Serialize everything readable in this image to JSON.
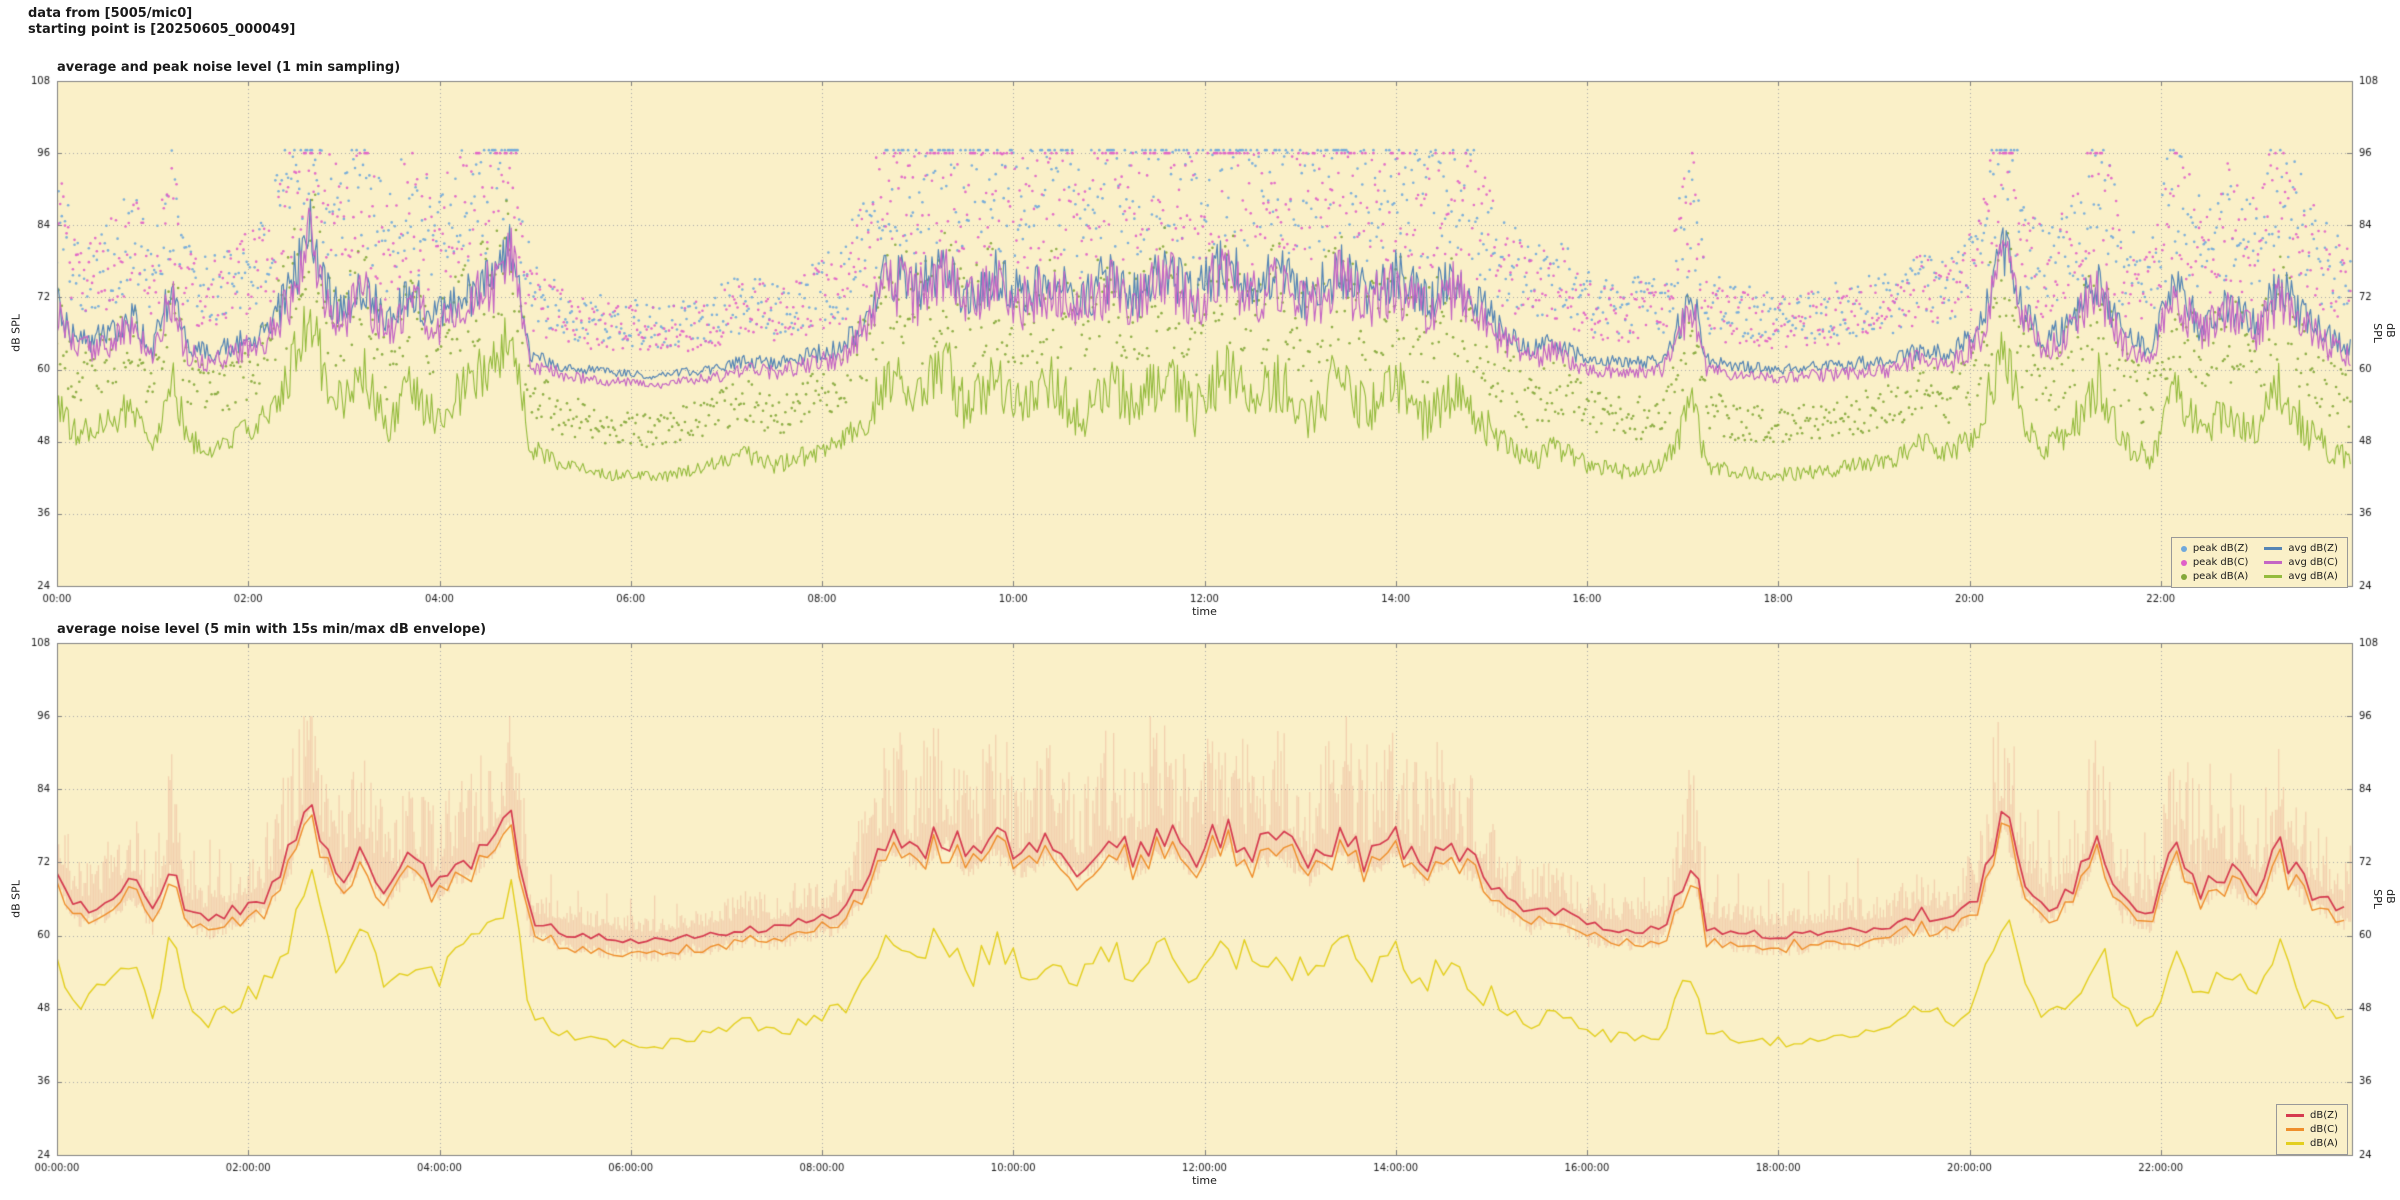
{
  "header": {
    "line1": "data from [5005/mic0]",
    "line2": "starting point is [20250605_000049]"
  },
  "colors": {
    "page_bg": "#ffffff",
    "plot_bg": "#faf0c8",
    "grid": "#a8a8a8",
    "axis": "#808080",
    "text": "#1a1a1a",
    "legend_bg": "#faf0c8",
    "legend_border": "#999999"
  },
  "chart_data": [
    {
      "type": "line",
      "kind": "minute_avg_peak",
      "title": "average and peak noise level (1 min sampling)",
      "xlabel": "time",
      "ylabel_left": "dB SPL",
      "ylabel_right": "dB SPL",
      "ylim": [
        24,
        108
      ],
      "yticks": [
        24,
        36,
        48,
        60,
        72,
        84,
        96,
        108
      ],
      "xlim_hours": [
        0,
        24
      ],
      "xticks_hours": [
        0,
        2,
        4,
        6,
        8,
        10,
        12,
        14,
        16,
        18,
        20,
        22
      ],
      "xtick_labels": [
        "00:00",
        "02:00",
        "04:00",
        "06:00",
        "08:00",
        "10:00",
        "12:00",
        "14:00",
        "16:00",
        "18:00",
        "20:00",
        "22:00"
      ],
      "grid": true,
      "legend_position": "bottom-right",
      "legend_columns": 2,
      "legend_entries": [
        {
          "label": "peak dB(Z)",
          "swatch": "dot",
          "color": "#6fa8dc"
        },
        {
          "label": "avg dB(Z)",
          "swatch": "line",
          "color": "#5585b5"
        },
        {
          "label": "peak dB(C)",
          "swatch": "dot",
          "color": "#e05fc8"
        },
        {
          "label": "avg dB(C)",
          "swatch": "line",
          "color": "#c466c4"
        },
        {
          "label": "peak dB(A)",
          "swatch": "dot",
          "color": "#84a83a"
        },
        {
          "label": "avg dB(A)",
          "swatch": "line",
          "color": "#94bb3d"
        }
      ],
      "series": [
        {
          "name": "peak dB(Z)",
          "style": "scatter",
          "color": "#6fa8dc",
          "seed": 101
        },
        {
          "name": "peak dB(C)",
          "style": "scatter",
          "color": "#e05fc8",
          "seed": 102
        },
        {
          "name": "peak dB(A)",
          "style": "scatter",
          "color": "#84a83a",
          "seed": 103
        },
        {
          "name": "avg dB(Z)",
          "style": "line",
          "color": "#5585b5",
          "seed": 104
        },
        {
          "name": "avg dB(C)",
          "style": "line",
          "color": "#c466c4",
          "seed": 105
        },
        {
          "name": "avg dB(A)",
          "style": "line",
          "color": "#94bb3d",
          "seed": 106
        }
      ],
      "sample_step_min": 1,
      "z_offset_from_c": 1.5,
      "keypoints": {
        "hours": [
          0,
          0.2,
          0.5,
          0.8,
          1.0,
          1.2,
          1.35,
          1.6,
          1.9,
          2.2,
          2.45,
          2.65,
          2.8,
          3.0,
          3.2,
          3.45,
          3.7,
          3.95,
          4.2,
          4.5,
          4.75,
          4.95,
          5.3,
          5.8,
          6.3,
          6.8,
          7.2,
          7.5,
          7.9,
          8.2,
          8.5,
          8.7,
          9.0,
          9.3,
          9.5,
          9.8,
          10.1,
          10.4,
          10.7,
          11.0,
          11.3,
          11.6,
          11.9,
          12.2,
          12.5,
          12.8,
          13.1,
          13.4,
          13.7,
          14.0,
          14.3,
          14.6,
          14.9,
          15.1,
          15.4,
          15.7,
          16.0,
          16.4,
          16.8,
          17.1,
          17.25,
          17.6,
          18.0,
          18.4,
          18.8,
          19.2,
          19.5,
          19.8,
          20.1,
          20.35,
          20.55,
          20.8,
          21.1,
          21.35,
          21.6,
          21.9,
          22.15,
          22.4,
          22.7,
          23.0,
          23.25,
          23.5,
          23.75,
          24
        ],
        "avg_dBC": [
          69,
          63,
          64,
          67,
          62,
          72,
          63,
          61,
          63,
          65,
          72,
          83,
          72,
          68,
          73,
          66,
          71,
          67,
          70,
          73,
          79,
          61,
          59,
          58,
          57.5,
          58.5,
          60,
          59.5,
          61,
          62,
          68,
          75,
          72,
          76,
          71,
          74,
          71,
          74,
          70,
          74,
          71,
          75,
          71,
          76,
          72,
          74,
          70,
          75,
          71,
          74,
          70,
          73,
          69,
          65,
          62,
          63,
          60,
          59.5,
          60,
          71,
          60,
          59,
          58.5,
          59,
          59.5,
          60,
          62,
          61,
          65,
          79,
          68,
          63,
          67,
          74,
          64,
          62,
          73,
          66,
          69,
          66,
          73,
          67,
          64,
          62
        ],
        "avg_dBA": [
          55,
          49,
          51,
          54,
          47,
          60,
          49,
          46,
          49,
          52,
          60,
          70,
          58,
          54,
          60,
          50,
          57,
          52,
          56,
          60,
          66,
          47,
          44,
          42.5,
          42,
          44,
          46,
          44,
          46,
          48,
          53,
          59,
          55,
          61,
          53,
          58,
          54,
          58,
          52,
          58,
          54,
          60,
          53,
          60,
          55,
          58,
          52,
          59,
          53,
          58,
          52,
          56,
          51,
          49,
          45,
          47,
          44,
          43,
          44,
          54,
          44,
          43,
          42.5,
          43,
          44,
          45,
          48,
          46,
          50,
          64,
          52,
          47,
          51,
          58,
          48,
          45,
          57,
          50,
          53,
          50,
          57,
          50,
          47,
          45
        ]
      }
    },
    {
      "type": "line",
      "kind": "five_min_envelope",
      "title": "average noise level (5 min with 15s min/max dB envelope)",
      "xlabel": "time",
      "ylabel_left": "dB SPL",
      "ylabel_right": "dB SPL",
      "ylim": [
        24,
        108
      ],
      "yticks": [
        24,
        36,
        48,
        60,
        72,
        84,
        96,
        108
      ],
      "xlim_hours": [
        0,
        24
      ],
      "xticks_hours": [
        0,
        2,
        4,
        6,
        8,
        10,
        12,
        14,
        16,
        18,
        20,
        22
      ],
      "xtick_labels": [
        "00:00:00",
        "02:00:00",
        "04:00:00",
        "06:00:00",
        "08:00:00",
        "10:00:00",
        "12:00:00",
        "14:00:00",
        "16:00:00",
        "18:00:00",
        "20:00:00",
        "22:00:00"
      ],
      "grid": true,
      "legend_position": "bottom-right",
      "legend_columns": 1,
      "legend_entries": [
        {
          "label": "dB(Z)",
          "swatch": "line",
          "color": "#d53a4f"
        },
        {
          "label": "dB(C)",
          "swatch": "line",
          "color": "#ef8e2b"
        },
        {
          "label": "dB(A)",
          "swatch": "line",
          "color": "#e3cf1f"
        }
      ],
      "series": [
        {
          "name": "dB(Z)",
          "style": "line",
          "color": "#d53a4f",
          "seed": 201
        },
        {
          "name": "dB(C)",
          "style": "line",
          "color": "#ef8e2b",
          "seed": 202
        },
        {
          "name": "dB(A)",
          "style": "line",
          "color": "#e3cf1f",
          "seed": 203
        }
      ],
      "envelope": {
        "color": "rgba(224,118,104,0.25)",
        "seed": 204
      },
      "sample_step_min": 5,
      "z_offset_from_c": 1.5,
      "keypoints": {
        "hours": [
          0,
          0.2,
          0.5,
          0.8,
          1.0,
          1.2,
          1.35,
          1.6,
          1.9,
          2.2,
          2.45,
          2.65,
          2.8,
          3.0,
          3.2,
          3.45,
          3.7,
          3.95,
          4.2,
          4.5,
          4.75,
          4.95,
          5.3,
          5.8,
          6.3,
          6.8,
          7.2,
          7.5,
          7.9,
          8.2,
          8.5,
          8.7,
          9.0,
          9.3,
          9.5,
          9.8,
          10.1,
          10.4,
          10.7,
          11.0,
          11.3,
          11.6,
          11.9,
          12.2,
          12.5,
          12.8,
          13.1,
          13.4,
          13.7,
          14.0,
          14.3,
          14.6,
          14.9,
          15.1,
          15.4,
          15.7,
          16.0,
          16.4,
          16.8,
          17.1,
          17.25,
          17.6,
          18.0,
          18.4,
          18.8,
          19.2,
          19.5,
          19.8,
          20.1,
          20.35,
          20.55,
          20.8,
          21.1,
          21.35,
          21.6,
          21.9,
          22.15,
          22.4,
          22.7,
          23.0,
          23.25,
          23.5,
          23.75,
          24
        ],
        "avg_dBC": [
          69,
          63,
          64,
          67,
          62,
          72,
          63,
          61,
          63,
          65,
          72,
          83,
          72,
          68,
          73,
          66,
          71,
          67,
          70,
          73,
          79,
          61,
          59,
          58,
          57.5,
          58.5,
          60,
          59.5,
          61,
          62,
          68,
          75,
          72,
          76,
          71,
          74,
          71,
          74,
          70,
          74,
          71,
          75,
          71,
          76,
          72,
          74,
          70,
          75,
          71,
          74,
          70,
          73,
          69,
          65,
          62,
          63,
          60,
          59.5,
          60,
          71,
          60,
          59,
          58.5,
          59,
          59.5,
          60,
          62,
          61,
          65,
          79,
          68,
          63,
          67,
          74,
          64,
          62,
          73,
          66,
          69,
          66,
          73,
          67,
          64,
          62
        ],
        "avg_dBA": [
          55,
          49,
          51,
          54,
          47,
          60,
          49,
          46,
          49,
          52,
          60,
          70,
          58,
          54,
          60,
          50,
          57,
          52,
          56,
          60,
          66,
          47,
          44,
          42.5,
          42,
          44,
          46,
          44,
          46,
          48,
          53,
          59,
          55,
          61,
          53,
          58,
          54,
          58,
          52,
          58,
          54,
          60,
          53,
          60,
          55,
          58,
          52,
          59,
          53,
          58,
          52,
          56,
          51,
          49,
          45,
          47,
          44,
          43,
          44,
          54,
          44,
          43,
          42.5,
          43,
          44,
          45,
          48,
          46,
          50,
          64,
          52,
          47,
          51,
          58,
          48,
          45,
          57,
          50,
          53,
          50,
          57,
          50,
          47,
          45
        ]
      }
    }
  ]
}
